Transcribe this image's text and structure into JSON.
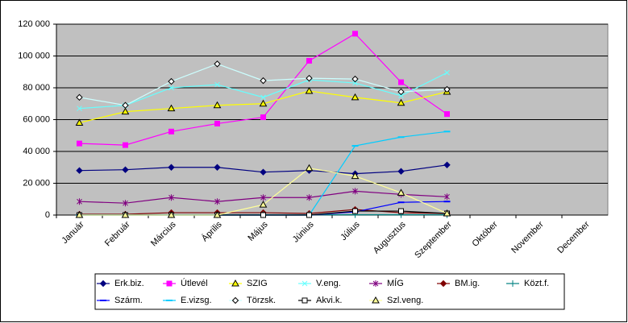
{
  "chart_data": {
    "type": "line",
    "categories": [
      "Január",
      "Február",
      "Március",
      "Április",
      "Május",
      "Június",
      "Július",
      "Augusztus",
      "Szeptember",
      "Október",
      "November",
      "December"
    ],
    "ylim": [
      0,
      120000
    ],
    "yticks": [
      0,
      {
        "value": 20000,
        "label": "20 000"
      },
      {
        "value": 40000,
        "label": "40 000"
      },
      {
        "value": 60000,
        "label": "60 000"
      },
      {
        "value": 80000,
        "label": "80 000"
      },
      {
        "value": 100000,
        "label": "100 000"
      },
      {
        "value": 120000,
        "label": "120 000"
      }
    ],
    "grid": true,
    "legend": "bottom",
    "series": [
      {
        "name": "Erk.biz.",
        "color": "#000080",
        "marker": "diamond",
        "marker_fill": "#000080",
        "values": [
          28000,
          28500,
          30000,
          30000,
          27000,
          28000,
          26000,
          27500,
          31500,
          null,
          null,
          null
        ]
      },
      {
        "name": "Útlevél",
        "color": "#ff00ff",
        "marker": "square",
        "marker_fill": "#ff00ff",
        "values": [
          45000,
          44000,
          52500,
          57500,
          61500,
          97000,
          114000,
          83500,
          63500,
          null,
          null,
          null
        ]
      },
      {
        "name": "SZIG",
        "color": "#ffff00",
        "marker": "triangle",
        "marker_fill": "#ffff00",
        "values": [
          58000,
          65000,
          67000,
          69000,
          70000,
          78000,
          74000,
          70500,
          77500,
          null,
          null,
          null
        ]
      },
      {
        "name": "V.eng.",
        "color": "#66ffff",
        "marker": "x",
        "marker_fill": "#66ffff",
        "values": [
          67000,
          69000,
          80000,
          82000,
          74000,
          85000,
          83000,
          75000,
          89500,
          null,
          null,
          null
        ]
      },
      {
        "name": "MÍG",
        "color": "#800080",
        "marker": "star",
        "marker_fill": "#800080",
        "values": [
          8500,
          7500,
          11000,
          8500,
          11000,
          11000,
          15000,
          13000,
          11500,
          null,
          null,
          null
        ]
      },
      {
        "name": "BM.ig.",
        "color": "#800000",
        "marker": "diamond",
        "marker_fill": "#800000",
        "values": [
          500,
          500,
          1500,
          1500,
          1500,
          1000,
          3500,
          1500,
          1000,
          null,
          null,
          null
        ]
      },
      {
        "name": "Közt.f.",
        "color": "#008080",
        "marker": "plus",
        "marker_fill": "#008080",
        "values": [
          200,
          200,
          200,
          200,
          200,
          200,
          200,
          200,
          200,
          null,
          null,
          null
        ]
      },
      {
        "name": "Szárm.",
        "color": "#0000ff",
        "marker": "dash",
        "marker_fill": "#0000ff",
        "values": [
          0,
          0,
          0,
          0,
          0,
          0,
          2000,
          8000,
          8500,
          null,
          null,
          null
        ]
      },
      {
        "name": "E.vizsg.",
        "color": "#00ccff",
        "marker": "dash",
        "marker_fill": "#00ccff",
        "values": [
          0,
          0,
          0,
          0,
          0,
          0,
          43500,
          49000,
          52500,
          null,
          null,
          null
        ]
      },
      {
        "name": "Törzsk.",
        "color": "#ccffff",
        "marker": "diamond",
        "marker_fill": "#ffffff",
        "values": [
          74000,
          69000,
          84000,
          95000,
          84500,
          86000,
          85500,
          77500,
          79000,
          null,
          null,
          null
        ]
      },
      {
        "name": "Akvi.k.",
        "color": "#000000",
        "marker": "square",
        "marker_fill": "#ffffff",
        "values": [
          0,
          0,
          0,
          0,
          0,
          0,
          2500,
          2500,
          1000,
          null,
          null,
          null
        ]
      },
      {
        "name": "Szl.veng.",
        "color": "#ffff99",
        "marker": "triangle",
        "marker_fill": "#ffff99",
        "values": [
          0,
          0,
          0,
          0,
          6500,
          29500,
          24500,
          14000,
          1000,
          null,
          null,
          null
        ]
      }
    ]
  }
}
